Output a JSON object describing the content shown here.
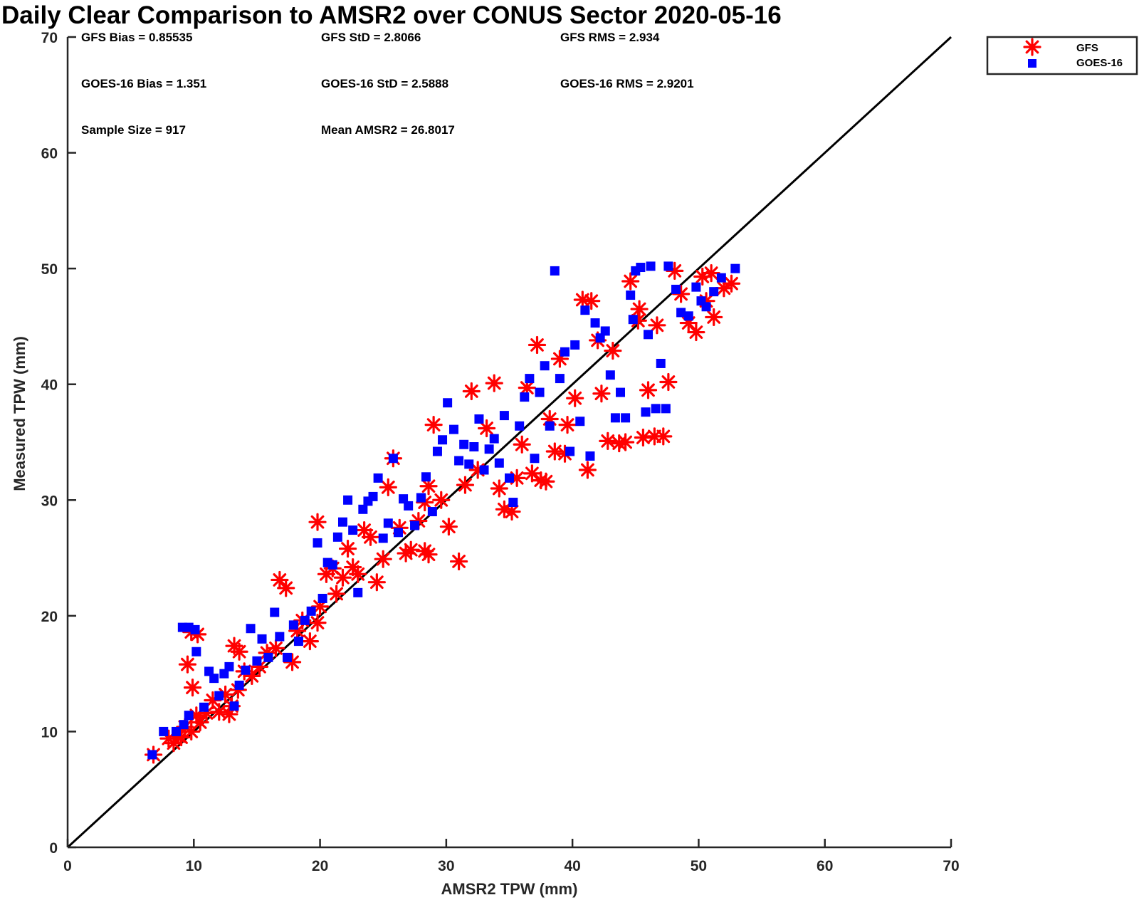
{
  "chart_data": {
    "type": "scatter",
    "title": "Daily Clear Comparison to AMSR2 over CONUS Sector 2020-05-16",
    "xlabel": "AMSR2 TPW (mm)",
    "ylabel": "Measured TPW (mm)",
    "xlim": [
      0,
      70
    ],
    "ylim": [
      0,
      70
    ],
    "x_ticks": [
      "0",
      "10",
      "20",
      "30",
      "40",
      "50",
      "60",
      "70"
    ],
    "y_ticks": [
      "0",
      "10",
      "20",
      "30",
      "40",
      "50",
      "60",
      "70"
    ],
    "grid": false,
    "legend_position": "top-right outside",
    "reference_line": {
      "description": "1:1 line",
      "x": [
        0,
        70
      ],
      "y": [
        0,
        70
      ],
      "color": "#000000"
    },
    "stats": [
      {
        "id": "gfs-bias",
        "text": "GFS Bias = 0.85535"
      },
      {
        "id": "gfs-std",
        "text": "GFS StD = 2.8066"
      },
      {
        "id": "gfs-rms",
        "text": "GFS RMS = 2.934"
      },
      {
        "id": "goes-bias",
        "text": "GOES-16 Bias = 1.351"
      },
      {
        "id": "goes-std",
        "text": "GOES-16 StD = 2.5888"
      },
      {
        "id": "goes-rms",
        "text": "GOES-16 RMS = 2.9201"
      },
      {
        "id": "sample-size",
        "text": "Sample Size = 917"
      },
      {
        "id": "mean-amsr2",
        "text": "Mean AMSR2 = 26.8017"
      }
    ],
    "series": [
      {
        "name": "GFS",
        "marker": "asterisk",
        "color": "#ff0000",
        "points": [
          [
            6.8,
            8.0
          ],
          [
            8.0,
            9.4
          ],
          [
            8.4,
            9.0
          ],
          [
            8.8,
            9.6
          ],
          [
            9.0,
            9.5
          ],
          [
            9.3,
            10.4
          ],
          [
            9.8,
            10.0
          ],
          [
            10.2,
            11.4
          ],
          [
            10.5,
            10.8
          ],
          [
            11.0,
            11.6
          ],
          [
            9.5,
            15.8
          ],
          [
            9.8,
            18.6
          ],
          [
            10.3,
            18.4
          ],
          [
            9.9,
            13.8
          ],
          [
            11.5,
            12.7
          ],
          [
            12.0,
            11.7
          ],
          [
            12.5,
            13.2
          ],
          [
            13.0,
            12.2
          ],
          [
            13.5,
            13.6
          ],
          [
            12.8,
            11.5
          ],
          [
            13.2,
            17.4
          ],
          [
            13.6,
            16.9
          ],
          [
            14.0,
            15.2
          ],
          [
            14.6,
            14.8
          ],
          [
            15.2,
            15.6
          ],
          [
            15.8,
            16.8
          ],
          [
            16.5,
            17.2
          ],
          [
            16.8,
            23.1
          ],
          [
            17.3,
            22.4
          ],
          [
            17.8,
            16.0
          ],
          [
            18.2,
            18.7
          ],
          [
            18.6,
            19.6
          ],
          [
            19.2,
            17.8
          ],
          [
            19.8,
            19.4
          ],
          [
            20.0,
            20.8
          ],
          [
            19.8,
            28.1
          ],
          [
            20.5,
            23.6
          ],
          [
            21.0,
            24.1
          ],
          [
            21.3,
            21.9
          ],
          [
            21.8,
            23.3
          ],
          [
            22.2,
            25.8
          ],
          [
            22.6,
            24.2
          ],
          [
            23.0,
            23.6
          ],
          [
            23.5,
            27.4
          ],
          [
            24.0,
            26.8
          ],
          [
            24.5,
            22.9
          ],
          [
            25.0,
            24.9
          ],
          [
            25.4,
            31.1
          ],
          [
            25.8,
            33.6
          ],
          [
            26.3,
            27.6
          ],
          [
            26.8,
            25.4
          ],
          [
            27.2,
            25.7
          ],
          [
            27.8,
            28.2
          ],
          [
            28.3,
            25.6
          ],
          [
            28.6,
            25.3
          ],
          [
            28.3,
            29.8
          ],
          [
            28.6,
            31.2
          ],
          [
            29.0,
            36.5
          ],
          [
            29.6,
            30.0
          ],
          [
            30.2,
            27.7
          ],
          [
            31.0,
            24.7
          ],
          [
            31.5,
            31.3
          ],
          [
            32.0,
            39.4
          ],
          [
            32.5,
            32.6
          ],
          [
            33.2,
            36.2
          ],
          [
            33.8,
            40.1
          ],
          [
            34.2,
            31.0
          ],
          [
            34.6,
            29.2
          ],
          [
            35.2,
            29.0
          ],
          [
            35.6,
            31.9
          ],
          [
            36.0,
            34.8
          ],
          [
            36.4,
            39.7
          ],
          [
            36.8,
            32.3
          ],
          [
            37.2,
            43.4
          ],
          [
            37.5,
            31.7
          ],
          [
            37.9,
            31.6
          ],
          [
            38.2,
            37.0
          ],
          [
            38.6,
            34.2
          ],
          [
            39.0,
            42.2
          ],
          [
            39.4,
            34.0
          ],
          [
            39.6,
            36.5
          ],
          [
            40.2,
            38.8
          ],
          [
            40.8,
            47.3
          ],
          [
            41.2,
            32.6
          ],
          [
            41.5,
            47.2
          ],
          [
            42.0,
            43.8
          ],
          [
            42.3,
            39.2
          ],
          [
            42.8,
            35.1
          ],
          [
            43.2,
            42.9
          ],
          [
            43.7,
            34.9
          ],
          [
            44.2,
            35.0
          ],
          [
            44.6,
            48.9
          ],
          [
            45.2,
            45.5
          ],
          [
            45.6,
            35.4
          ],
          [
            46.0,
            39.5
          ],
          [
            46.5,
            35.5
          ],
          [
            47.2,
            35.5
          ],
          [
            47.6,
            40.2
          ],
          [
            48.1,
            49.8
          ],
          [
            48.6,
            47.8
          ],
          [
            49.2,
            45.3
          ],
          [
            49.8,
            44.5
          ],
          [
            50.3,
            49.3
          ],
          [
            51.0,
            49.6
          ],
          [
            51.2,
            45.8
          ],
          [
            50.6,
            47.2
          ],
          [
            52.0,
            48.3
          ],
          [
            52.6,
            48.7
          ],
          [
            45.3,
            46.5
          ],
          [
            46.7,
            45.1
          ]
        ]
      },
      {
        "name": "GOES-16",
        "marker": "square",
        "color": "#0000ff",
        "points": [
          [
            6.7,
            8.0
          ],
          [
            7.6,
            10.0
          ],
          [
            8.6,
            10.0
          ],
          [
            9.2,
            10.6
          ],
          [
            9.6,
            11.4
          ],
          [
            9.1,
            19.0
          ],
          [
            9.6,
            19.0
          ],
          [
            10.1,
            18.8
          ],
          [
            10.2,
            16.9
          ],
          [
            10.8,
            12.1
          ],
          [
            11.2,
            15.2
          ],
          [
            11.6,
            14.6
          ],
          [
            12.0,
            13.1
          ],
          [
            12.4,
            15.0
          ],
          [
            12.8,
            15.6
          ],
          [
            13.2,
            12.2
          ],
          [
            13.6,
            14.0
          ],
          [
            14.1,
            15.3
          ],
          [
            14.5,
            18.9
          ],
          [
            15.0,
            16.1
          ],
          [
            15.4,
            18.0
          ],
          [
            15.9,
            16.4
          ],
          [
            16.4,
            20.3
          ],
          [
            16.8,
            18.2
          ],
          [
            17.4,
            16.4
          ],
          [
            17.9,
            19.2
          ],
          [
            18.3,
            17.8
          ],
          [
            18.8,
            19.6
          ],
          [
            19.3,
            20.4
          ],
          [
            19.8,
            26.3
          ],
          [
            20.2,
            21.5
          ],
          [
            20.6,
            24.6
          ],
          [
            21.0,
            24.4
          ],
          [
            21.4,
            26.8
          ],
          [
            21.8,
            28.1
          ],
          [
            22.2,
            30.0
          ],
          [
            22.6,
            27.4
          ],
          [
            23.0,
            22.0
          ],
          [
            23.4,
            29.2
          ],
          [
            23.8,
            29.9
          ],
          [
            24.2,
            30.3
          ],
          [
            24.6,
            31.9
          ],
          [
            25.0,
            26.7
          ],
          [
            25.4,
            28.0
          ],
          [
            25.8,
            33.6
          ],
          [
            26.2,
            27.2
          ],
          [
            26.6,
            30.1
          ],
          [
            27.0,
            29.5
          ],
          [
            27.5,
            27.8
          ],
          [
            28.0,
            30.2
          ],
          [
            28.4,
            32.0
          ],
          [
            28.9,
            29.0
          ],
          [
            29.3,
            34.2
          ],
          [
            29.7,
            35.2
          ],
          [
            30.1,
            38.4
          ],
          [
            30.6,
            36.1
          ],
          [
            31.0,
            33.4
          ],
          [
            31.4,
            34.8
          ],
          [
            31.8,
            33.1
          ],
          [
            32.2,
            34.6
          ],
          [
            32.6,
            37.0
          ],
          [
            33.0,
            32.6
          ],
          [
            33.4,
            34.4
          ],
          [
            33.8,
            35.3
          ],
          [
            34.2,
            33.2
          ],
          [
            34.6,
            37.3
          ],
          [
            35.0,
            31.9
          ],
          [
            35.3,
            29.8
          ],
          [
            35.8,
            36.4
          ],
          [
            36.2,
            38.9
          ],
          [
            36.6,
            40.5
          ],
          [
            37.0,
            33.6
          ],
          [
            37.4,
            39.3
          ],
          [
            37.8,
            41.6
          ],
          [
            38.2,
            36.4
          ],
          [
            38.6,
            49.8
          ],
          [
            39.0,
            40.5
          ],
          [
            39.4,
            42.8
          ],
          [
            39.8,
            34.2
          ],
          [
            40.2,
            43.4
          ],
          [
            40.6,
            36.8
          ],
          [
            41.0,
            46.4
          ],
          [
            41.4,
            33.8
          ],
          [
            41.8,
            45.3
          ],
          [
            42.2,
            44.0
          ],
          [
            42.6,
            44.6
          ],
          [
            43.0,
            40.8
          ],
          [
            43.4,
            37.1
          ],
          [
            43.8,
            39.3
          ],
          [
            44.2,
            37.1
          ],
          [
            44.6,
            47.7
          ],
          [
            45.0,
            49.8
          ],
          [
            45.4,
            50.1
          ],
          [
            45.8,
            37.6
          ],
          [
            46.2,
            50.2
          ],
          [
            46.6,
            37.9
          ],
          [
            47.0,
            41.8
          ],
          [
            47.4,
            37.9
          ],
          [
            47.6,
            50.2
          ],
          [
            48.2,
            48.2
          ],
          [
            48.6,
            46.2
          ],
          [
            49.2,
            45.9
          ],
          [
            49.8,
            48.4
          ],
          [
            50.2,
            47.2
          ],
          [
            50.6,
            46.7
          ],
          [
            51.2,
            48.0
          ],
          [
            51.8,
            49.2
          ],
          [
            52.9,
            50.0
          ],
          [
            44.8,
            45.6
          ],
          [
            46.0,
            44.3
          ]
        ]
      }
    ]
  }
}
